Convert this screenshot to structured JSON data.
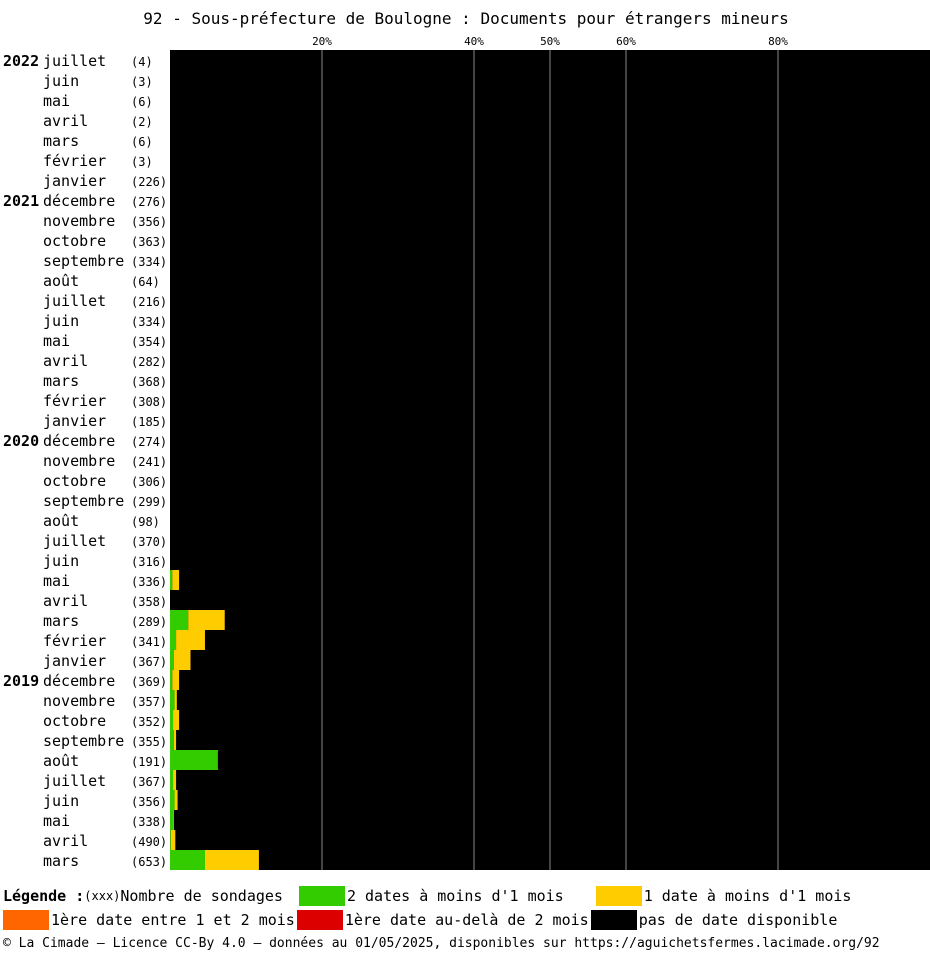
{
  "chart_data": {
    "type": "bar",
    "orientation": "horizontal",
    "stacked": true,
    "title": "92 - Sous-préfecture de Boulogne : Documents pour étrangers mineurs",
    "x_ticks": [
      "20%",
      "40%",
      "50%",
      "60%",
      "80%"
    ],
    "x_tick_values": [
      20,
      40,
      50,
      60,
      80
    ],
    "xlim": [
      0,
      100
    ],
    "grid": true,
    "rows": [
      {
        "year": "2022",
        "month": "juillet",
        "count": "(4)"
      },
      {
        "year": "",
        "month": "juin",
        "count": "(3)"
      },
      {
        "year": "",
        "month": "mai",
        "count": "(6)"
      },
      {
        "year": "",
        "month": "avril",
        "count": "(2)"
      },
      {
        "year": "",
        "month": "mars",
        "count": "(6)"
      },
      {
        "year": "",
        "month": "février",
        "count": "(3)"
      },
      {
        "year": "",
        "month": "janvier",
        "count": "(226)"
      },
      {
        "year": "2021",
        "month": "décembre",
        "count": "(276)"
      },
      {
        "year": "",
        "month": "novembre",
        "count": "(356)"
      },
      {
        "year": "",
        "month": "octobre",
        "count": "(363)"
      },
      {
        "year": "",
        "month": "septembre",
        "count": "(334)"
      },
      {
        "year": "",
        "month": "août",
        "count": "(64)"
      },
      {
        "year": "",
        "month": "juillet",
        "count": "(216)"
      },
      {
        "year": "",
        "month": "juin",
        "count": "(334)"
      },
      {
        "year": "",
        "month": "mai",
        "count": "(354)"
      },
      {
        "year": "",
        "month": "avril",
        "count": "(282)"
      },
      {
        "year": "",
        "month": "mars",
        "count": "(368)"
      },
      {
        "year": "",
        "month": "février",
        "count": "(308)"
      },
      {
        "year": "",
        "month": "janvier",
        "count": "(185)"
      },
      {
        "year": "2020",
        "month": "décembre",
        "count": "(274)"
      },
      {
        "year": "",
        "month": "novembre",
        "count": "(241)"
      },
      {
        "year": "",
        "month": "octobre",
        "count": "(306)"
      },
      {
        "year": "",
        "month": "septembre",
        "count": "(299)"
      },
      {
        "year": "",
        "month": "août",
        "count": "(98)"
      },
      {
        "year": "",
        "month": "juillet",
        "count": "(370)"
      },
      {
        "year": "",
        "month": "juin",
        "count": "(316)"
      },
      {
        "year": "",
        "month": "mai",
        "count": "(336)"
      },
      {
        "year": "",
        "month": "avril",
        "count": "(358)"
      },
      {
        "year": "",
        "month": "mars",
        "count": "(289)"
      },
      {
        "year": "",
        "month": "février",
        "count": "(341)"
      },
      {
        "year": "",
        "month": "janvier",
        "count": "(367)"
      },
      {
        "year": "2019",
        "month": "décembre",
        "count": "(369)"
      },
      {
        "year": "",
        "month": "novembre",
        "count": "(357)"
      },
      {
        "year": "",
        "month": "octobre",
        "count": "(352)"
      },
      {
        "year": "",
        "month": "septembre",
        "count": "(355)"
      },
      {
        "year": "",
        "month": "août",
        "count": "(191)"
      },
      {
        "year": "",
        "month": "juillet",
        "count": "(367)"
      },
      {
        "year": "",
        "month": "juin",
        "count": "(356)"
      },
      {
        "year": "",
        "month": "mai",
        "count": "(338)"
      },
      {
        "year": "",
        "month": "avril",
        "count": "(490)"
      },
      {
        "year": "",
        "month": "mars",
        "count": "(653)"
      }
    ],
    "series": [
      {
        "name": "2 dates à moins d'1 mois",
        "color": "#33cc00",
        "values": [
          0,
          0,
          0,
          0,
          0,
          0,
          0,
          0,
          0,
          0,
          0,
          0,
          0,
          0,
          0,
          0,
          0,
          0,
          0,
          0,
          0,
          0,
          0,
          0,
          0,
          0,
          0.3,
          0,
          2.4,
          0.8,
          0.5,
          0.3,
          0.6,
          0.4,
          0.5,
          6.3,
          0.4,
          0.6,
          0.4,
          0.1,
          4.6
        ]
      },
      {
        "name": "1 date à moins d'1 mois",
        "color": "#ffcc00",
        "values": [
          0,
          0,
          0,
          0,
          0,
          0,
          0,
          0,
          0,
          0,
          0,
          0,
          0,
          0,
          0,
          0,
          0,
          0,
          0,
          0,
          0,
          0,
          0,
          0,
          0,
          0,
          0.9,
          0,
          4.8,
          3.8,
          2.2,
          0.9,
          0.3,
          0.8,
          0.3,
          0,
          0.4,
          0.4,
          0.1,
          0.6,
          7.1
        ]
      },
      {
        "name": "1ère date entre 1 et 2 mois",
        "color": "#ff6600",
        "values": [
          0,
          0,
          0,
          0,
          0,
          0,
          0,
          0,
          0,
          0,
          0,
          0,
          0,
          0,
          0,
          0,
          0,
          0,
          0,
          0,
          0,
          0,
          0,
          0,
          0,
          0,
          0,
          0,
          0,
          0,
          0,
          0,
          0,
          0,
          0,
          0,
          0,
          0,
          0,
          0,
          0
        ]
      },
      {
        "name": "1ère date au-delà de 2 mois",
        "color": "#dd0000",
        "values": [
          0,
          0,
          0,
          0,
          0,
          0,
          0,
          0,
          0,
          0,
          0,
          0,
          0,
          0,
          0,
          0,
          0,
          0,
          0,
          0,
          0,
          0,
          0,
          0,
          0,
          0,
          0,
          0,
          0,
          0,
          0,
          0,
          0,
          0,
          0,
          0,
          0,
          0,
          0,
          0,
          0
        ]
      },
      {
        "name": "pas de date disponible",
        "color": "#000000",
        "remainder": true
      }
    ]
  },
  "legend": {
    "title": "Légende :",
    "count_key": "(xxx)",
    "count_label": "Nombre de sondages",
    "items": [
      {
        "label": "2 dates à moins d'1 mois",
        "color": "#33cc00"
      },
      {
        "label": "1 date à moins d'1 mois",
        "color": "#ffcc00"
      },
      {
        "label": "1ère date entre 1 et 2 mois",
        "color": "#ff6600"
      },
      {
        "label": "1ère date au-delà de 2 mois",
        "color": "#dd0000"
      },
      {
        "label": "pas de date disponible",
        "color": "#000000"
      }
    ]
  },
  "footer": {
    "text": "© La Cimade — Licence CC-By 4.0 — données au 01/05/2025, disponibles sur https://aguichetsfermes.lacimade.org/92"
  }
}
